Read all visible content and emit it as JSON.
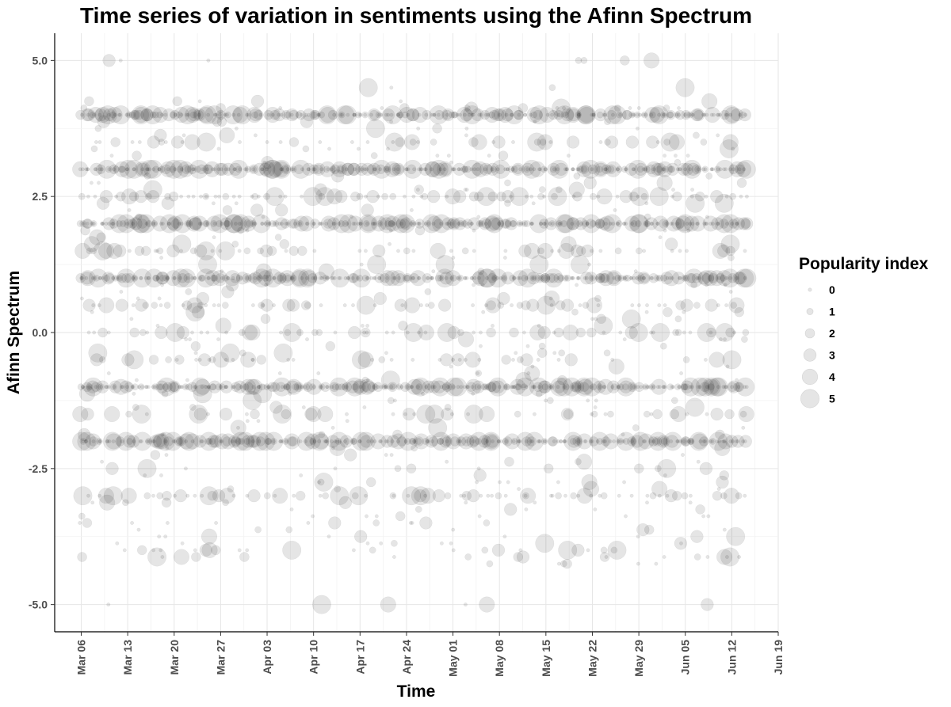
{
  "chart_data": {
    "type": "scatter",
    "title": "Time series of variation in sentiments using the Afinn Spectrum",
    "xlabel": "Time",
    "ylabel": "Afinn Spectrum",
    "x_range": [
      "2020-03-02",
      "2020-06-19"
    ],
    "ylim": [
      -5.5,
      5.5
    ],
    "x_ticks": [
      "Mar 06",
      "Mar 13",
      "Mar 20",
      "Mar 27",
      "Apr 03",
      "Apr 10",
      "Apr 17",
      "Apr 24",
      "May 01",
      "May 08",
      "May 15",
      "May 22",
      "May 29",
      "Jun 05",
      "Jun 12",
      "Jun 19"
    ],
    "y_ticks": [
      "5.0",
      "2.5",
      "0.0",
      "-2.5",
      "-5.0"
    ],
    "y_tick_values": [
      5,
      2.5,
      0,
      -2.5,
      -5
    ],
    "date_range": [
      "2020-03-06",
      "2020-06-14"
    ],
    "dense_rows": [
      {
        "y": 4,
        "density": 0.9
      },
      {
        "y": 3.5,
        "density": 0.45
      },
      {
        "y": 3,
        "density": 1.0
      },
      {
        "y": 2.5,
        "density": 0.85
      },
      {
        "y": 2,
        "density": 1.0
      },
      {
        "y": 1.5,
        "density": 0.6
      },
      {
        "y": 1,
        "density": 1.0
      },
      {
        "y": 0.5,
        "density": 0.55
      },
      {
        "y": 0,
        "density": 0.55
      },
      {
        "y": -0.5,
        "density": 0.4
      },
      {
        "y": -1,
        "density": 1.0
      },
      {
        "y": -1.5,
        "density": 0.35
      },
      {
        "y": -2,
        "density": 0.95
      },
      {
        "y": -2.5,
        "density": 0.12
      },
      {
        "y": -3,
        "density": 0.7
      },
      {
        "y": -3.5,
        "density": 0.08
      },
      {
        "y": -4,
        "density": 0.25
      },
      {
        "y": 4.5,
        "density": 0.05
      },
      {
        "y": 5,
        "density": 0.08
      },
      {
        "y": -5,
        "density": 0.06
      }
    ],
    "point_color": "#000000",
    "point_opacity": 0.1,
    "legend": {
      "title": "Popularity index",
      "labels": [
        "0",
        "1",
        "2",
        "3",
        "4",
        "5"
      ],
      "position": "right"
    },
    "grid": true
  }
}
